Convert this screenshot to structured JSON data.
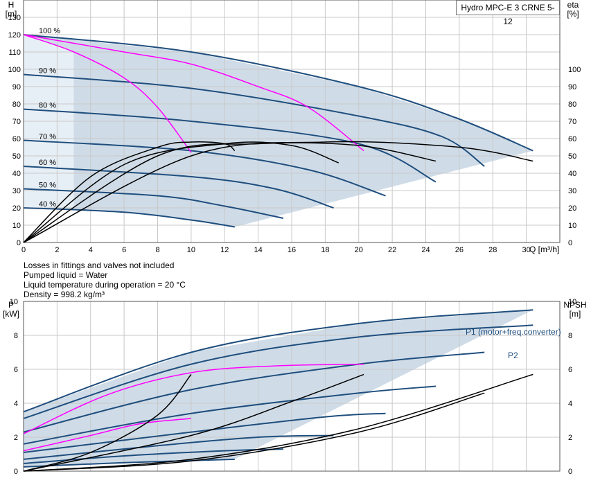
{
  "title": "Hydro MPC-E 3 CRNE 5-12",
  "notes": [
    "Losses in fittings and valves not included",
    "Pumped liquid = Water",
    "Liquid temperature during operation = 20 °C",
    "Density = 998.2 kg/m³"
  ],
  "colors": {
    "band": "#cfdce8",
    "band_light": "#e7eff6",
    "curve": "#1f4e7d",
    "efficiency": "#000000",
    "system": "#ff00ff",
    "grid": "#c8c8c8"
  },
  "chart_data": [
    {
      "type": "line",
      "ylabel_left": "H",
      "ylabel_left_unit": "[m]",
      "ylabel_right": "eta",
      "ylabel_right_unit": "[%]",
      "xlabel": "Q [m³/h]",
      "xlim": [
        0,
        32
      ],
      "ylim": [
        0,
        140
      ],
      "x_ticks": [
        0,
        2,
        4,
        6,
        8,
        10,
        12,
        14,
        16,
        18,
        20,
        22,
        24,
        26,
        28,
        30
      ],
      "y_ticks_left": [
        0,
        10,
        20,
        30,
        40,
        50,
        60,
        70,
        80,
        90,
        100,
        110,
        120,
        130
      ],
      "y_ticks_right": [
        0,
        10,
        20,
        30,
        40,
        50,
        60,
        70,
        80,
        90,
        100
      ],
      "speed_labels": [
        "100 %",
        "90 %",
        "80 %",
        "70 %",
        "60 %",
        "50 %",
        "40 %"
      ],
      "grid": true,
      "head_curves": [
        {
          "speed": "100 %",
          "pumps": 3,
          "points": [
            [
              0,
              120
            ],
            [
              10,
              110
            ],
            [
              20,
              90
            ],
            [
              25.8,
              72
            ],
            [
              30.4,
              53
            ]
          ]
        },
        {
          "speed": "90 %",
          "pumps": 3,
          "points": [
            [
              0,
              97
            ],
            [
              10,
              89
            ],
            [
              20,
              73
            ],
            [
              25,
              61
            ],
            [
              27.5,
              44
            ]
          ]
        },
        {
          "speed": "80 %",
          "pumps": 3,
          "points": [
            [
              0,
              77
            ],
            [
              10,
              70
            ],
            [
              20,
              57
            ],
            [
              24.6,
              35
            ]
          ]
        },
        {
          "speed": "70 %",
          "pumps": 3,
          "points": [
            [
              0,
              59
            ],
            [
              10,
              53
            ],
            [
              17,
              42
            ],
            [
              21.6,
              27
            ]
          ]
        },
        {
          "speed": "60 %",
          "pumps": 3,
          "points": [
            [
              0,
              44
            ],
            [
              10,
              38
            ],
            [
              15,
              31
            ],
            [
              18.5,
              20
            ]
          ]
        },
        {
          "speed": "50 %",
          "pumps": 3,
          "points": [
            [
              0,
              31
            ],
            [
              8,
              27
            ],
            [
              12,
              21
            ],
            [
              15.5,
              14
            ]
          ]
        },
        {
          "speed": "40 %",
          "pumps": 3,
          "points": [
            [
              0,
              20
            ],
            [
              6,
              17.5
            ],
            [
              10,
              13
            ],
            [
              12.6,
              9
            ]
          ]
        }
      ],
      "system_curves": [
        {
          "points": [
            [
              0,
              120
            ],
            [
              3,
              110
            ],
            [
              6,
              95
            ],
            [
              8,
              78
            ],
            [
              10,
              52
            ]
          ]
        },
        {
          "points": [
            [
              0,
              120
            ],
            [
              6,
              110
            ],
            [
              10,
              103
            ],
            [
              14,
              90
            ],
            [
              17,
              78
            ],
            [
              20.3,
              53
            ]
          ]
        }
      ],
      "efficiency_curves": [
        {
          "points": [
            [
              0,
              0
            ],
            [
              4,
              38
            ],
            [
              8,
              55
            ],
            [
              10,
              58
            ],
            [
              12,
              57
            ],
            [
              12.6,
              53
            ]
          ]
        },
        {
          "points": [
            [
              0,
              0
            ],
            [
              6,
              45
            ],
            [
              12,
              57
            ],
            [
              16,
              56
            ],
            [
              18.8,
              46
            ]
          ]
        },
        {
          "points": [
            [
              0,
              0
            ],
            [
              8,
              50
            ],
            [
              14,
              57
            ],
            [
              20,
              56
            ],
            [
              24.6,
              47
            ]
          ]
        },
        {
          "points": [
            [
              0,
              0
            ],
            [
              10,
              50
            ],
            [
              18,
              58
            ],
            [
              26,
              55
            ],
            [
              30.4,
              47
            ]
          ]
        }
      ]
    },
    {
      "type": "line",
      "ylabel_left": "P",
      "ylabel_left_unit": "[kW]",
      "ylabel_right": "NPSH",
      "ylabel_right_unit": "[m]",
      "xlim": [
        0,
        32
      ],
      "ylim": [
        0,
        10
      ],
      "y_ticks_left": [
        0,
        2,
        4,
        6,
        8,
        10
      ],
      "y_ticks_right": [
        0,
        2,
        4,
        6,
        8,
        10
      ],
      "series_labels": [
        "P1 (motor+freq.converter)",
        "P2"
      ],
      "grid": true,
      "power_curves": [
        {
          "name": "P1",
          "points": [
            [
              0,
              3.5
            ],
            [
              10,
              7
            ],
            [
              20,
              8.7
            ],
            [
              30.4,
              9.5
            ]
          ]
        },
        {
          "name": "P2",
          "points": [
            [
              0,
              3.1
            ],
            [
              10,
              6.3
            ],
            [
              20,
              7.9
            ],
            [
              30.4,
              8.6
            ]
          ]
        },
        {
          "points": [
            [
              0,
              2.3
            ],
            [
              10,
              4.8
            ],
            [
              20,
              6.3
            ],
            [
              27.5,
              7
            ]
          ]
        },
        {
          "points": [
            [
              0,
              1.6
            ],
            [
              10,
              3.4
            ],
            [
              20,
              4.6
            ],
            [
              24.6,
              5
            ]
          ]
        },
        {
          "points": [
            [
              0,
              1.1
            ],
            [
              10,
              2.3
            ],
            [
              18,
              3.2
            ],
            [
              21.6,
              3.4
            ]
          ]
        },
        {
          "points": [
            [
              0,
              0.7
            ],
            [
              8,
              1.5
            ],
            [
              14,
              2
            ],
            [
              18.5,
              2.1
            ]
          ]
        },
        {
          "points": [
            [
              0,
              0.45
            ],
            [
              6,
              0.9
            ],
            [
              12,
              1.2
            ],
            [
              15.5,
              1.3
            ]
          ]
        },
        {
          "points": [
            [
              0,
              0.25
            ],
            [
              6,
              0.5
            ],
            [
              12.6,
              0.7
            ]
          ]
        }
      ],
      "magenta_curves": [
        {
          "points": [
            [
              0,
              2.2
            ],
            [
              5,
              4.5
            ],
            [
              10,
              5.8
            ],
            [
              15,
              6.2
            ],
            [
              20.3,
              6.3
            ]
          ]
        },
        {
          "points": [
            [
              0,
              1.2
            ],
            [
              4,
              2.1
            ],
            [
              7,
              2.8
            ],
            [
              10,
              3.1
            ]
          ]
        }
      ],
      "npsh_curves": [
        {
          "points": [
            [
              0,
              0
            ],
            [
              10,
              0.7
            ],
            [
              20,
              2.5
            ],
            [
              30.4,
              5.7
            ]
          ]
        },
        {
          "points": [
            [
              0,
              0
            ],
            [
              10,
              0.6
            ],
            [
              20,
              2.3
            ],
            [
              27.5,
              4.6
            ]
          ]
        },
        {
          "points": [
            [
              0,
              0
            ],
            [
              4,
              1.1
            ],
            [
              8,
              3.3
            ],
            [
              10,
              5.7
            ]
          ]
        },
        {
          "points": [
            [
              0,
              0
            ],
            [
              10,
              2.1
            ],
            [
              16,
              4.1
            ],
            [
              20.3,
              5.7
            ]
          ]
        }
      ]
    }
  ]
}
